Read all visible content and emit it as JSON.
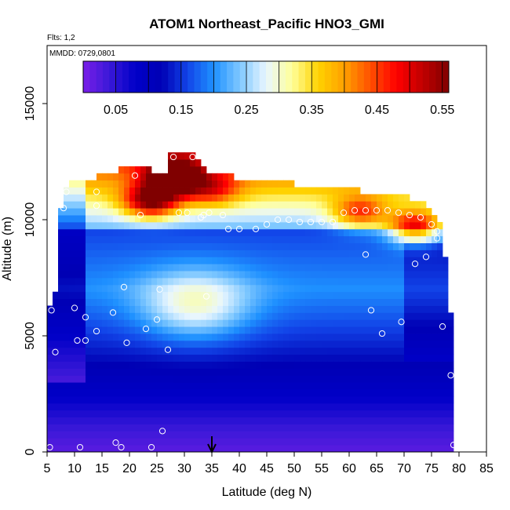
{
  "chart_data": {
    "type": "heatmap",
    "title": "ATOM1 Northeast_Pacific HNO3_GMI",
    "flights_label": "Flts: 1,2",
    "date_label": "MMDD: 0729,0801",
    "xlabel": "Latitude (deg N)",
    "ylabel": "Altitude (m)",
    "xlim": [
      5,
      85
    ],
    "ylim": [
      0,
      17500
    ],
    "x_ticks": [
      "5",
      "10",
      "15",
      "20",
      "25",
      "30",
      "35",
      "40",
      "45",
      "50",
      "55",
      "60",
      "65",
      "70",
      "75",
      "80",
      "85"
    ],
    "y_ticks": [
      "0",
      "5000",
      "10000",
      "15000"
    ],
    "colorbar": {
      "range": [
        0.0,
        0.56
      ],
      "tick_labels": [
        "0.05",
        "0.15",
        "0.25",
        "0.35",
        "0.45",
        "0.55"
      ],
      "tick_values": [
        0.05,
        0.15,
        0.25,
        0.35,
        0.45,
        0.55
      ],
      "colors": [
        "#7a1fe8",
        "#3a18d8",
        "#0000c8",
        "#0000b4",
        "#1244e8",
        "#1e90ff",
        "#7fc8ff",
        "#e8f6ff",
        "#ffff99",
        "#ffd200",
        "#ffa000",
        "#ff5000",
        "#ff0000",
        "#c00000",
        "#800000"
      ]
    },
    "grid": false,
    "marker": {
      "x": 35,
      "label": "arrow"
    },
    "profile_outline": [
      [
        5.0,
        0
      ],
      [
        79.0,
        0
      ],
      [
        79.0,
        3500
      ],
      [
        78.5,
        6000
      ],
      [
        77.5,
        8500
      ],
      [
        77.0,
        9800
      ],
      [
        76.0,
        10200
      ],
      [
        74.5,
        10600
      ],
      [
        72.0,
        10900
      ],
      [
        68.5,
        11100
      ],
      [
        55.0,
        11400
      ],
      [
        48.0,
        11600
      ],
      [
        34.0,
        12000
      ],
      [
        32.0,
        12800
      ],
      [
        27.5,
        12900
      ],
      [
        27.0,
        12000
      ],
      [
        22.0,
        12300
      ],
      [
        15.0,
        12000
      ],
      [
        13.0,
        11700
      ],
      [
        8.0,
        11500
      ],
      [
        7.5,
        10400
      ],
      [
        6.5,
        7000
      ],
      [
        5.0,
        6000
      ]
    ],
    "samples": [
      [
        5.5,
        200
      ],
      [
        11,
        200
      ],
      [
        12,
        4800
      ],
      [
        14,
        5200
      ],
      [
        17,
        6000
      ],
      [
        17.5,
        400
      ],
      [
        18.5,
        200
      ],
      [
        19,
        7100
      ],
      [
        19.5,
        4700
      ],
      [
        23,
        5300
      ],
      [
        24,
        200
      ],
      [
        25,
        5700
      ],
      [
        25.5,
        7000
      ],
      [
        26,
        900
      ],
      [
        27,
        4400
      ],
      [
        5.8,
        6100
      ],
      [
        6.5,
        4300
      ],
      [
        8,
        10500
      ],
      [
        8.5,
        11200
      ],
      [
        10,
        6200
      ],
      [
        10.5,
        4800
      ],
      [
        12,
        5800
      ],
      [
        14,
        10600
      ],
      [
        14,
        11200
      ],
      [
        21,
        11900
      ],
      [
        22,
        10200
      ],
      [
        28,
        12700
      ],
      [
        29,
        10300
      ],
      [
        30.5,
        10300
      ],
      [
        31.5,
        12700
      ],
      [
        33,
        10100
      ],
      [
        33.5,
        10200
      ],
      [
        34,
        6700
      ],
      [
        34.5,
        10300
      ],
      [
        37,
        10200
      ],
      [
        38,
        9600
      ],
      [
        40,
        9600
      ],
      [
        43,
        9600
      ],
      [
        45,
        9800
      ],
      [
        47,
        10000
      ],
      [
        49,
        10000
      ],
      [
        51,
        9900
      ],
      [
        53,
        9900
      ],
      [
        55,
        9900
      ],
      [
        57,
        9900
      ],
      [
        59,
        10300
      ],
      [
        61,
        10400
      ],
      [
        63,
        10400
      ],
      [
        63,
        8500
      ],
      [
        64,
        6100
      ],
      [
        65,
        10400
      ],
      [
        66,
        5100
      ],
      [
        67,
        10400
      ],
      [
        69,
        10300
      ],
      [
        69.5,
        5600
      ],
      [
        71,
        10200
      ],
      [
        72,
        8100
      ],
      [
        73,
        10100
      ],
      [
        74,
        8400
      ],
      [
        75,
        9800
      ],
      [
        76,
        9500
      ],
      [
        76,
        9200
      ],
      [
        77,
        5400
      ],
      [
        78.5,
        3300
      ],
      [
        79,
        300
      ]
    ],
    "hotspots": [
      {
        "x": 28,
        "y": 11800,
        "v": 0.55
      },
      {
        "x": 24,
        "y": 10800,
        "v": 0.5
      },
      {
        "x": 72,
        "y": 9700,
        "v": 0.5
      },
      {
        "x": 62,
        "y": 10300,
        "v": 0.42
      },
      {
        "x": 35,
        "y": 11300,
        "v": 0.38
      }
    ]
  }
}
